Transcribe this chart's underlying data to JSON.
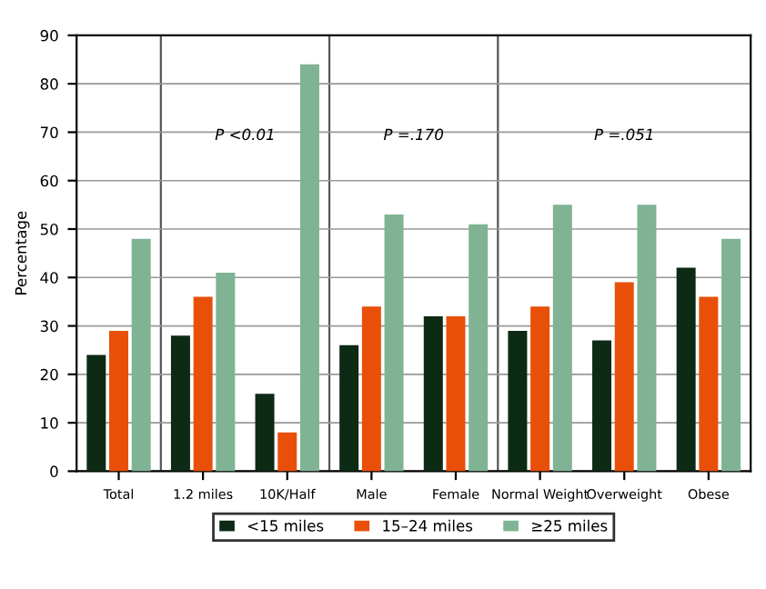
{
  "chart_data": {
    "type": "bar",
    "ylabel": "Percentage",
    "categories": [
      "Total",
      "1.2 miles",
      "10K/Half",
      "Male",
      "Female",
      "Normal Weight",
      "Overweight",
      "Obese"
    ],
    "series": [
      {
        "name": "<15 miles",
        "color": "#0d2a14",
        "values": [
          24,
          28,
          16,
          26,
          32,
          29,
          27,
          42
        ]
      },
      {
        "name": "15–24 miles",
        "color": "#e8500a",
        "values": [
          29,
          36,
          8,
          34,
          32,
          34,
          39,
          36
        ]
      },
      {
        "name": "≥25 miles",
        "color": "#7fb394",
        "values": [
          48,
          41,
          84,
          53,
          51,
          55,
          55,
          48
        ]
      }
    ],
    "ylim": [
      0,
      90
    ],
    "yticks": [
      0,
      10,
      20,
      30,
      40,
      50,
      60,
      70,
      80,
      90
    ],
    "grid": "y",
    "legend": "bottom",
    "annotations": [
      "P <0.01",
      "P =.170",
      "P =.051"
    ]
  }
}
